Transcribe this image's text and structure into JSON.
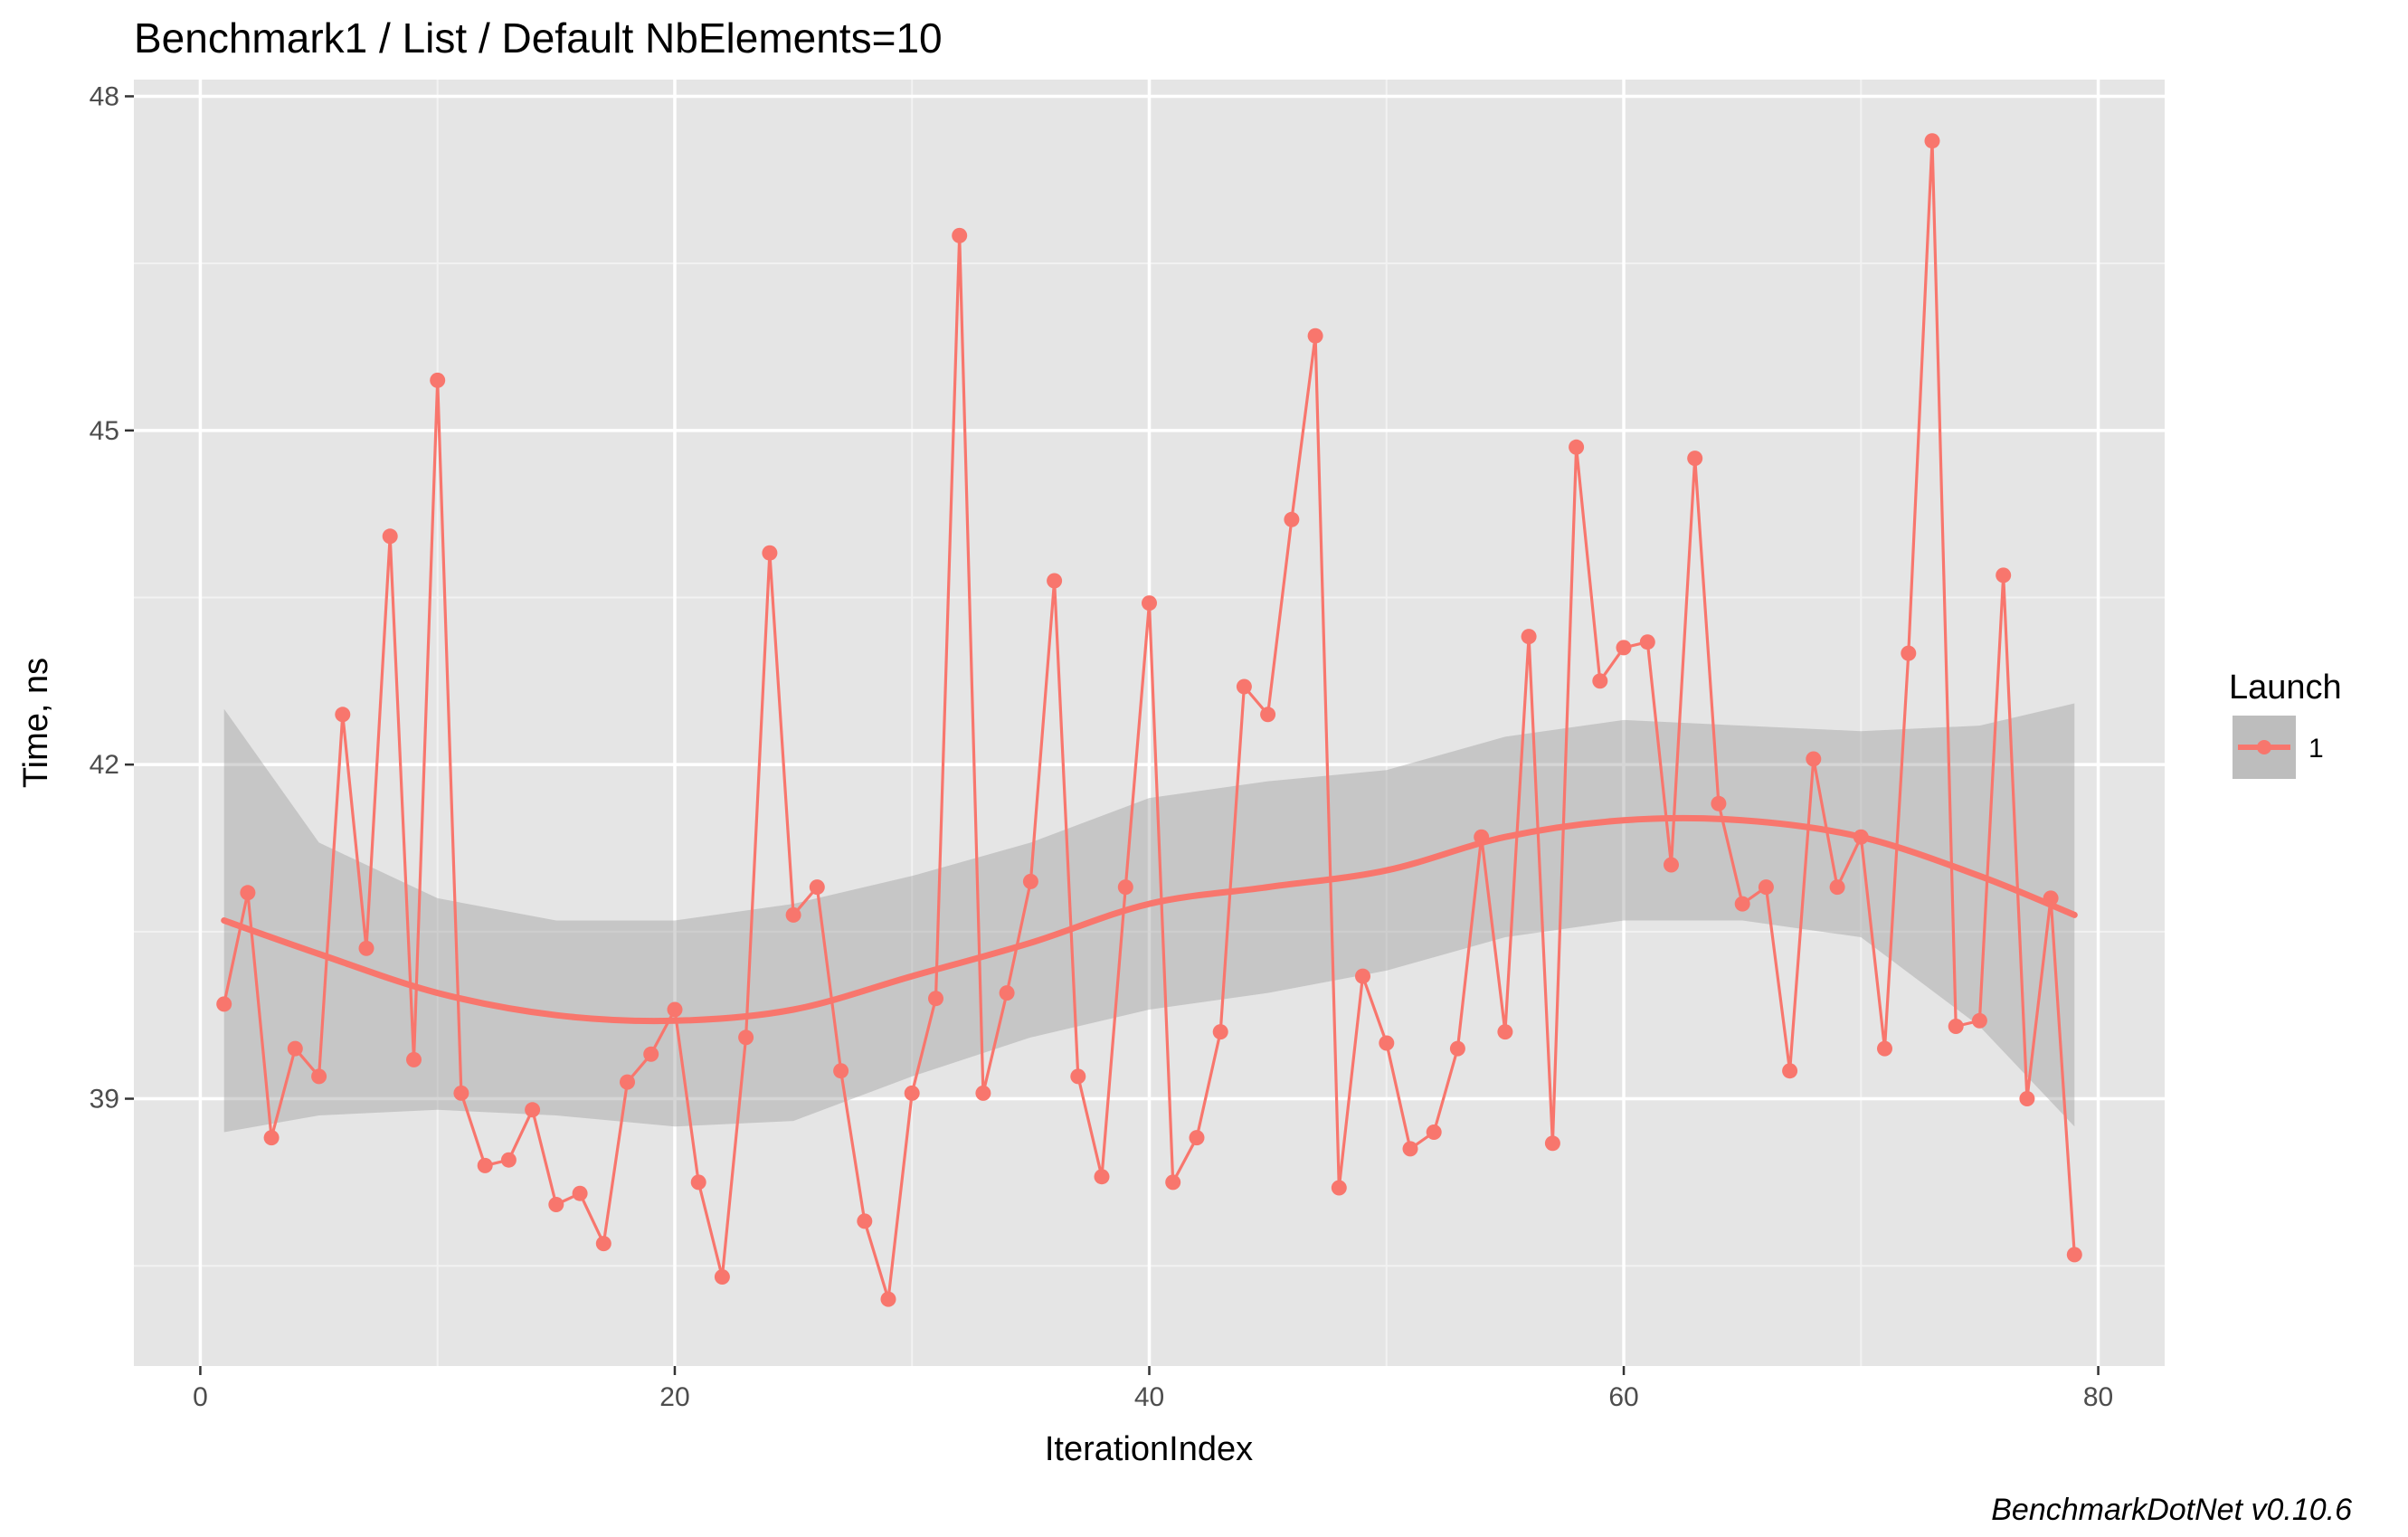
{
  "chart_data": {
    "type": "line",
    "title": "Benchmark1 / List / Default NbElements=10",
    "xlabel": "IterationIndex",
    "ylabel": "Time, ns",
    "caption": "BenchmarkDotNet v0.10.6",
    "xlim": [
      -2.8,
      82.8
    ],
    "ylim": [
      36.6,
      48.15
    ],
    "x_ticks": [
      0,
      20,
      40,
      60,
      80
    ],
    "x_minor": [
      10,
      30,
      50,
      70
    ],
    "y_ticks": [
      39,
      42,
      45,
      48
    ],
    "y_minor": [
      37.5,
      40.5,
      43.5,
      46.5
    ],
    "grid": true,
    "legend": {
      "title": "Launch",
      "entries": [
        "1"
      ],
      "position": "right"
    },
    "series": [
      {
        "name": "1",
        "color": "#F8766D",
        "x": [
          1,
          2,
          3,
          4,
          5,
          6,
          7,
          8,
          9,
          10,
          11,
          12,
          13,
          14,
          15,
          16,
          17,
          18,
          19,
          20,
          21,
          22,
          23,
          24,
          25,
          26,
          27,
          28,
          29,
          30,
          31,
          32,
          33,
          34,
          35,
          36,
          37,
          38,
          39,
          40,
          41,
          42,
          43,
          44,
          45,
          46,
          47,
          48,
          49,
          50,
          51,
          52,
          53,
          54,
          55,
          56,
          57,
          58,
          59,
          60,
          61,
          62,
          63,
          64,
          65,
          66,
          67,
          68,
          69,
          70,
          71,
          72,
          73,
          74,
          75,
          76,
          77,
          78,
          79
        ],
        "y": [
          39.85,
          40.85,
          38.65,
          39.45,
          39.2,
          42.45,
          40.35,
          44.05,
          39.35,
          45.45,
          39.05,
          38.4,
          38.45,
          38.9,
          38.05,
          38.15,
          37.7,
          39.15,
          39.4,
          39.8,
          38.25,
          37.4,
          39.55,
          43.9,
          40.65,
          40.9,
          39.25,
          37.9,
          37.2,
          39.05,
          39.9,
          46.75,
          39.05,
          39.95,
          40.95,
          43.65,
          39.2,
          38.3,
          40.9,
          43.45,
          38.25,
          38.65,
          39.6,
          42.7,
          42.45,
          44.2,
          45.85,
          38.2,
          40.1,
          39.5,
          38.55,
          38.7,
          39.45,
          41.35,
          39.6,
          43.15,
          38.6,
          44.85,
          42.75,
          43.05,
          43.1,
          41.1,
          44.75,
          41.65,
          40.75,
          40.9,
          39.25,
          42.05,
          40.9,
          41.35,
          39.45,
          43,
          47.6,
          39.65,
          39.7,
          43.7,
          39,
          40.8,
          37.6
        ]
      }
    ],
    "smooth": {
      "color": "#F8766D",
      "band_color": "#999999",
      "x": [
        1,
        5,
        10,
        15,
        20,
        25,
        30,
        35,
        40,
        45,
        50,
        55,
        60,
        65,
        70,
        75,
        79
      ],
      "y": [
        40.6,
        40.3,
        39.95,
        39.75,
        39.7,
        39.8,
        40.1,
        40.4,
        40.75,
        40.9,
        41.05,
        41.35,
        41.5,
        41.5,
        41.35,
        41.0,
        40.65
      ],
      "ymin": [
        38.7,
        38.85,
        38.9,
        38.85,
        38.75,
        38.8,
        39.2,
        39.55,
        39.8,
        39.95,
        40.15,
        40.45,
        40.6,
        40.6,
        40.45,
        39.65,
        38.75
      ],
      "ymax": [
        42.5,
        41.3,
        40.8,
        40.6,
        40.6,
        40.75,
        41.0,
        41.3,
        41.7,
        41.85,
        41.95,
        42.25,
        42.4,
        42.35,
        42.3,
        42.35,
        42.55
      ]
    }
  }
}
